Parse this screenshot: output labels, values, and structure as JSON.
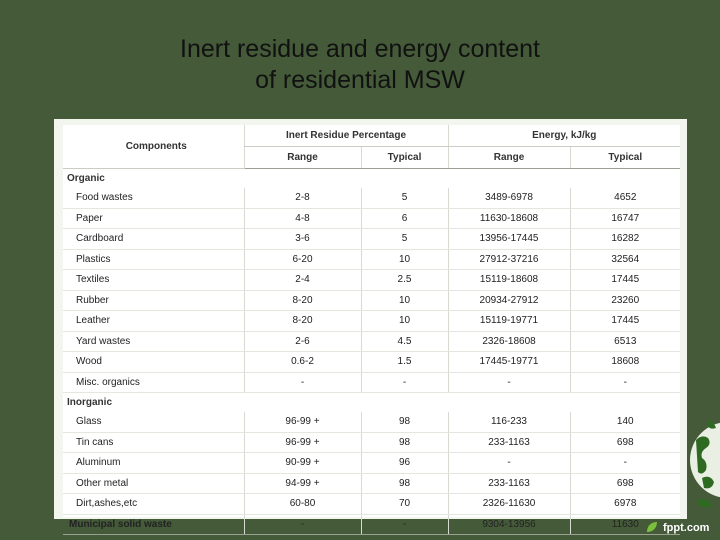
{
  "title_line1": "Inert residue and energy content",
  "title_line2": "of residential MSW",
  "header": {
    "components": "Components",
    "inert": "Inert Residue Percentage",
    "energy": "Energy, kJ/kg",
    "range1": "Range",
    "typical1": "Typical",
    "range2": "Range",
    "typical2": "Typical"
  },
  "organic_label": "Organic",
  "organic": [
    {
      "name": "Food wastes",
      "r1": "2-8",
      "t1": "5",
      "r2": "3489-6978",
      "t2": "4652"
    },
    {
      "name": "Paper",
      "r1": "4-8",
      "t1": "6",
      "r2": "11630-18608",
      "t2": "16747"
    },
    {
      "name": "Cardboard",
      "r1": "3-6",
      "t1": "5",
      "r2": "13956-17445",
      "t2": "16282"
    },
    {
      "name": "Plastics",
      "r1": "6-20",
      "t1": "10",
      "r2": "27912-37216",
      "t2": "32564"
    },
    {
      "name": "Textiles",
      "r1": "2-4",
      "t1": "2.5",
      "r2": "15119-18608",
      "t2": "17445"
    },
    {
      "name": "Rubber",
      "r1": "8-20",
      "t1": "10",
      "r2": "20934-27912",
      "t2": "23260"
    },
    {
      "name": "Leather",
      "r1": "8-20",
      "t1": "10",
      "r2": "15119-19771",
      "t2": "17445"
    },
    {
      "name": "Yard wastes",
      "r1": "2-6",
      "t1": "4.5",
      "r2": "2326-18608",
      "t2": "6513"
    },
    {
      "name": "Wood",
      "r1": "0.6-2",
      "t1": "1.5",
      "r2": "17445-19771",
      "t2": "18608"
    },
    {
      "name": "Misc. organics",
      "r1": "-",
      "t1": "-",
      "r2": "-",
      "t2": "-"
    }
  ],
  "inorganic_label": "Inorganic",
  "inorganic": [
    {
      "name": "Glass",
      "r1": "96-99 +",
      "t1": "98",
      "r2": "116-233",
      "t2": "140"
    },
    {
      "name": "Tin cans",
      "r1": "96-99 +",
      "t1": "98",
      "r2": "233-1163",
      "t2": "698"
    },
    {
      "name": "Aluminum",
      "r1": "90-99 +",
      "t1": "96",
      "r2": "-",
      "t2": "-"
    },
    {
      "name": "Other metal",
      "r1": "94-99 +",
      "t1": "98",
      "r2": "233-1163",
      "t2": "698"
    },
    {
      "name": "Dirt,ashes,etc",
      "r1": "60-80",
      "t1": "70",
      "r2": "2326-11630",
      "t2": "6978"
    }
  ],
  "total": {
    "name": "Municipal solid waste",
    "r1": "-",
    "t1": "-",
    "r2": "9304-13956",
    "t2": "11630"
  },
  "brand": "fppt.com",
  "colors": {
    "background": "#445a38",
    "table": "#ffffff"
  }
}
